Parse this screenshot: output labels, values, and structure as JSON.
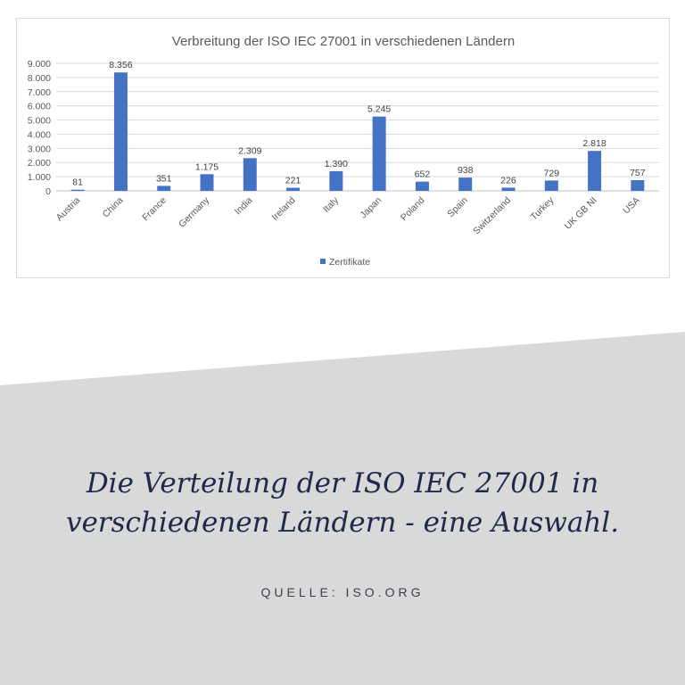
{
  "chart_data": {
    "type": "bar",
    "title": "Verbreitung der ISO IEC 27001 in verschiedenen Ländern",
    "categories": [
      "Austria",
      "China",
      "France",
      "Germany",
      "India",
      "Ireland",
      "Italy",
      "Japan",
      "Poland",
      "Spain",
      "Switzerland",
      "Turkey",
      "UK GB NI",
      "USA"
    ],
    "series": [
      {
        "name": "Zertifikate",
        "values": [
          81,
          8356,
          351,
          1175,
          2309,
          221,
          1390,
          5245,
          652,
          938,
          226,
          729,
          2818,
          757
        ],
        "labels": [
          "81",
          "8.356",
          "351",
          "1.175",
          "2.309",
          "221",
          "1.390",
          "5.245",
          "652",
          "938",
          "226",
          "729",
          "2.818",
          "757"
        ],
        "color": "#4472c4"
      }
    ],
    "ylim": [
      0,
      9000
    ],
    "yticks": [
      0,
      1000,
      2000,
      3000,
      4000,
      5000,
      6000,
      7000,
      8000,
      9000
    ],
    "ytick_labels": [
      "0",
      "1.000",
      "2.000",
      "3.000",
      "4.000",
      "5.000",
      "6.000",
      "7.000",
      "8.000",
      "9.000"
    ],
    "grid": true,
    "legend_position": "bottom"
  },
  "caption": {
    "line1": "Die Verteilung der ISO IEC 27001 in",
    "line2": "verschiedenen Ländern - eine Auswahl."
  },
  "source": "QUELLE: ISO.ORG",
  "colors": {
    "panel": "#d9d9d9",
    "bar": "#4472c4",
    "caption": "#1f2a4a"
  }
}
